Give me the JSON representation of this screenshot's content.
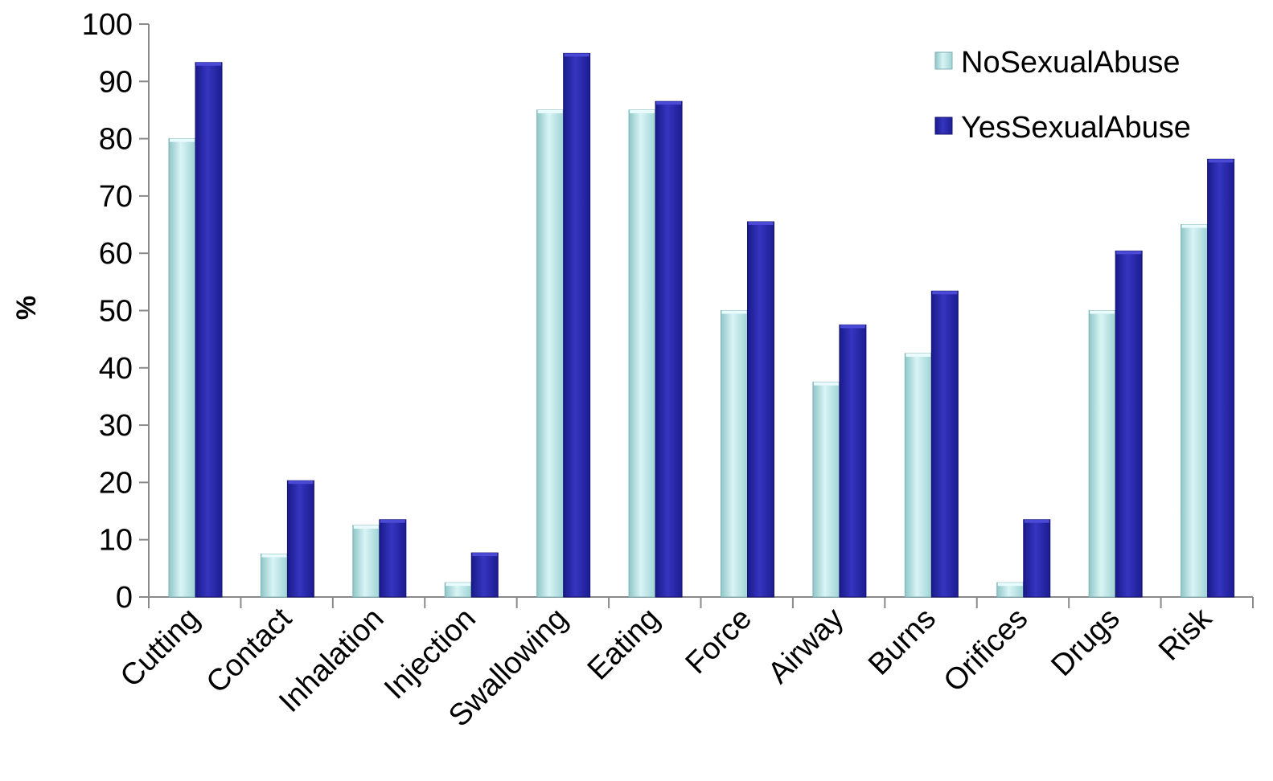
{
  "chart_data": {
    "type": "bar",
    "title": "",
    "xlabel": "",
    "ylabel": "%",
    "ylim": [
      0,
      100
    ],
    "yticks": [
      0,
      10,
      20,
      30,
      40,
      50,
      60,
      70,
      80,
      90,
      100
    ],
    "grid": false,
    "legend_position": "top-right",
    "categories": [
      "Cutting",
      "Contact",
      "Inhalation",
      "Injection",
      "Swallowing",
      "Eating",
      "Force",
      "Airway",
      "Burns",
      "Orifices",
      "Drugs",
      "Risk"
    ],
    "series": [
      {
        "name": "NoSexualAbuse",
        "color": "#b9e6e8",
        "values": [
          80,
          7.5,
          12.5,
          2.5,
          85,
          85,
          50,
          37.5,
          42.5,
          2.5,
          50,
          65
        ]
      },
      {
        "name": "YesSexualAbuse",
        "color": "#2323a8",
        "values": [
          93.3,
          20.3,
          13.5,
          7.7,
          94.9,
          86.5,
          65.5,
          47.5,
          53.4,
          13.5,
          60.4,
          76.4
        ]
      }
    ]
  }
}
